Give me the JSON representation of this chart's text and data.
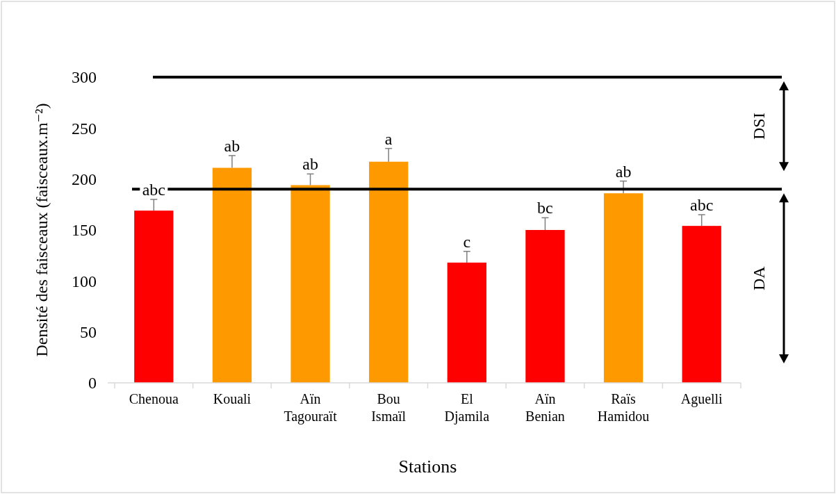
{
  "chart_data": {
    "type": "bar",
    "xlabel": "Stations",
    "ylabel": "Densité des faisceaux (faisceaux.m⁻²)",
    "categories": [
      "Chenoua",
      "Kouali",
      "Aïn Tagouraït",
      "Bou Ismaïl",
      "El Djamila",
      "Aïn Benian",
      "Raïs Hamidou",
      "Aguelli"
    ],
    "values": [
      169,
      211,
      194,
      217,
      118,
      150,
      186,
      154
    ],
    "colors": [
      "#ff0000",
      "#ff9900",
      "#ff9900",
      "#ff9900",
      "#ff0000",
      "#ff0000",
      "#ff9900",
      "#ff0000"
    ],
    "errors": [
      [
        169,
        180
      ],
      [
        211,
        223
      ],
      [
        194,
        205
      ],
      [
        217,
        230
      ],
      [
        118,
        129
      ],
      [
        150,
        162
      ],
      [
        186,
        198
      ],
      [
        154,
        165
      ]
    ],
    "ylim": [
      0,
      300
    ],
    "yticks": [
      0,
      50,
      100,
      150,
      200,
      250,
      300
    ],
    "grid": false,
    "legend": false,
    "ref_lines": [
      {
        "axis": "y",
        "value": 300,
        "color": "#000000"
      },
      {
        "axis": "y",
        "value": 190,
        "color": "#000000"
      }
    ],
    "annotations": [
      "DSI",
      "DA",
      {
        "text": "abc",
        "x": "Chenoua",
        "y": 180
      },
      {
        "text": "ab",
        "x": "Kouali",
        "y": 223
      },
      {
        "text": "ab",
        "x": "Aïn Tagouraït",
        "y": 205
      },
      {
        "text": "a",
        "x": "Bou Ismaïl",
        "y": 230
      },
      {
        "text": "c",
        "x": "El Djamila",
        "y": 129
      },
      {
        "text": "bc",
        "x": "Aïn Benian",
        "y": 162
      },
      {
        "text": "ab",
        "x": "Raïs Hamidou",
        "y": 198
      },
      {
        "text": "abc",
        "x": "Aguelli",
        "y": 165
      }
    ]
  }
}
